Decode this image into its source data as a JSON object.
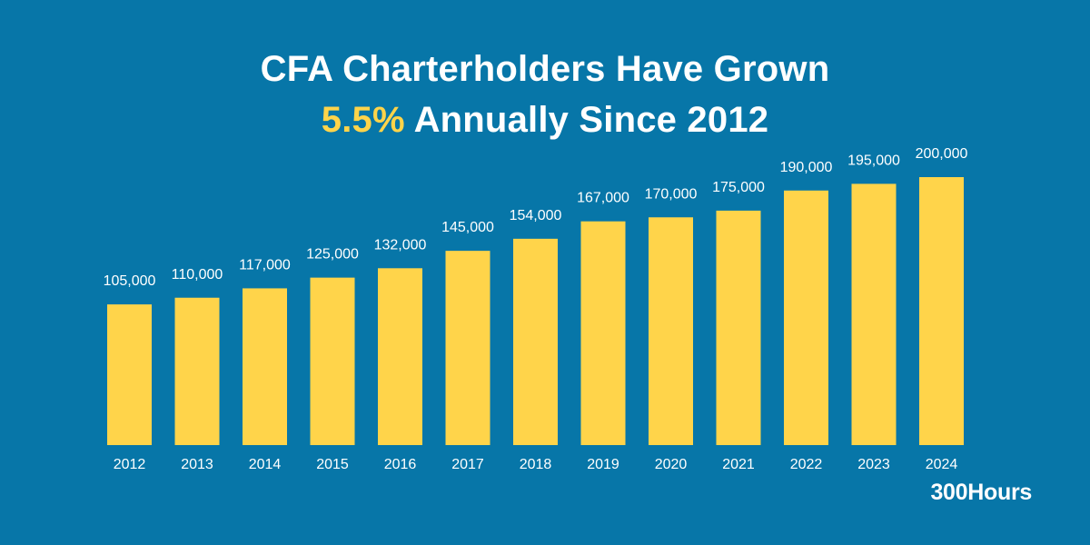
{
  "title": {
    "line1": "CFA Charterholders Have Grown",
    "highlight": "5.5%",
    "line2_rest": " Annually Since 2012"
  },
  "brand": "300Hours",
  "colors": {
    "background": "#0776a8",
    "bar": "#ffd44a",
    "text": "#ffffff"
  },
  "chart_data": {
    "type": "bar",
    "title": "CFA Charterholders Have Grown 5.5% Annually Since 2012",
    "xlabel": "",
    "ylabel": "",
    "grid": false,
    "legend": "none",
    "categories": [
      "2012",
      "2013",
      "2014",
      "2015",
      "2016",
      "2017",
      "2018",
      "2019",
      "2020",
      "2021",
      "2022",
      "2023",
      "2024"
    ],
    "values": [
      105000,
      110000,
      117000,
      125000,
      132000,
      145000,
      154000,
      167000,
      170000,
      175000,
      190000,
      195000,
      200000
    ],
    "value_labels": [
      "105,000",
      "110,000",
      "117,000",
      "125,000",
      "132,000",
      "145,000",
      "154,000",
      "167,000",
      "170,000",
      "175,000",
      "190,000",
      "195,000",
      "200,000"
    ],
    "ylim": [
      0,
      200000
    ]
  }
}
